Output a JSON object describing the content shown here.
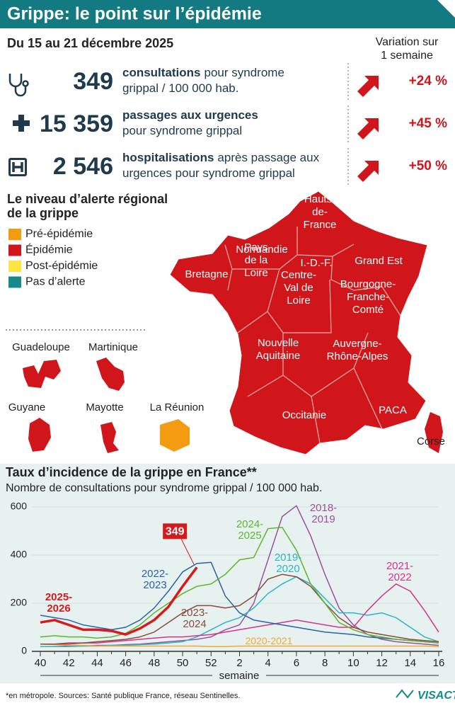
{
  "header": {
    "title": "Grippe: le point sur l’épidémie"
  },
  "period": "Du 15 au 21 décembre 2025",
  "variation_title": [
    "Variation sur",
    "1 semaine"
  ],
  "stats": [
    {
      "number": "349",
      "lines": [
        [
          "consultations",
          "pour syndrome"
        ],
        [
          "grippal / 100 000 hab."
        ]
      ],
      "variation": "+24 %"
    },
    {
      "number": "15 359",
      "lines": [
        [
          "passages aux urgences"
        ],
        [
          "pour syndrome grippal"
        ]
      ],
      "variation": "+45 %"
    },
    {
      "number": "2 546",
      "lines": [
        [
          "hospitalisations",
          "après passage aux"
        ],
        [
          "urgences pour syndrome grippal"
        ]
      ],
      "variation": "+50 %"
    }
  ],
  "legend": {
    "title": [
      "Le niveau d’alerte régional",
      "de la grippe"
    ],
    "items": [
      {
        "label": "Pré-épidémie",
        "color": "#f39c12"
      },
      {
        "label": "Épidémie",
        "color": "#d0161b"
      },
      {
        "label": "Post-épidémie",
        "color": "#fde541"
      },
      {
        "label": "Pas d’alerte",
        "color": "#16898a"
      }
    ]
  },
  "map": {
    "color": "#d0161b",
    "regions": [
      [
        "Hauts-",
        "de-",
        "France"
      ],
      [
        "Normandie"
      ],
      [
        "I.-D.-F."
      ],
      [
        "Grand Est"
      ],
      [
        "Bretagne"
      ],
      [
        "Pays",
        "de la",
        "Loire"
      ],
      [
        "Centre-",
        "Val de",
        "Loire"
      ],
      [
        "Bourgogne-",
        "Franche-",
        "Comté"
      ],
      [
        "Nouvelle",
        "Aquitaine"
      ],
      [
        "Auvergne-",
        "Rhône-Alpes"
      ],
      [
        "Occitanie"
      ],
      [
        "PACA"
      ],
      [
        "Corse"
      ]
    ],
    "overseas": [
      {
        "label": "Guadeloupe",
        "color": "#d0161b"
      },
      {
        "label": "Martinique",
        "color": "#d0161b"
      },
      {
        "label": "Guyane",
        "color": "#d0161b"
      },
      {
        "label": "Mayotte",
        "color": "#d0161b"
      },
      {
        "label": "La Réunion",
        "color": "#f39c12"
      }
    ]
  },
  "chart_data": {
    "type": "line",
    "title": "Taux d’incidence de la grippe en France**",
    "subtitle": "Nombre de consultations pour syndrome grippal / 100 000 hab.",
    "x_label": "semaine",
    "categories": [
      "40",
      null,
      "42",
      null,
      "44",
      null,
      "46",
      null,
      "48",
      null,
      "50",
      null,
      "52",
      null,
      "2",
      null,
      "4",
      null,
      "6",
      null,
      "8",
      null,
      "10",
      null,
      "12",
      null,
      "14",
      null,
      "16"
    ],
    "ylim": [
      0,
      600
    ],
    "yticks": [
      0,
      200,
      400,
      600
    ],
    "grid": true,
    "series": [
      {
        "name": "2025-2026",
        "color": "#d7191c",
        "values": [
          120,
          130,
          110,
          90,
          90,
          85,
          70,
          95,
          130,
          185,
          270,
          349,
          null,
          null,
          null,
          null,
          null,
          null,
          null,
          null,
          null,
          null,
          null,
          null,
          null,
          null,
          null,
          null,
          null
        ]
      },
      {
        "name": "2024-2025",
        "color": "#5db52e",
        "values": [
          60,
          65,
          60,
          60,
          55,
          60,
          75,
          110,
          160,
          200,
          240,
          270,
          280,
          320,
          380,
          390,
          510,
          515,
          420,
          280,
          200,
          120,
          90,
          70,
          60,
          50,
          45,
          40,
          35
        ]
      },
      {
        "name": "2023-2024",
        "color": "#8b4a3c",
        "values": [
          30,
          30,
          35,
          35,
          40,
          45,
          50,
          60,
          80,
          120,
          160,
          190,
          190,
          180,
          190,
          230,
          300,
          320,
          310,
          270,
          200,
          140,
          100,
          80,
          70,
          60,
          50,
          45,
          40
        ]
      },
      {
        "name": "2022-2023",
        "color": "#2a62a8",
        "values": [
          150,
          140,
          130,
          110,
          100,
          90,
          100,
          130,
          180,
          250,
          330,
          365,
          370,
          230,
          160,
          130,
          120,
          110,
          100,
          90,
          80,
          75,
          70,
          60,
          55,
          50,
          45,
          40,
          35
        ]
      },
      {
        "name": "2021-2022",
        "color": "#d6338a",
        "values": [
          30,
          30,
          30,
          35,
          35,
          40,
          45,
          50,
          55,
          60,
          60,
          65,
          70,
          80,
          90,
          100,
          110,
          120,
          130,
          120,
          110,
          100,
          100,
          170,
          230,
          280,
          250,
          170,
          80
        ]
      },
      {
        "name": "2020-2021",
        "color": "#f0a830",
        "values": [
          30,
          28,
          25,
          25,
          22,
          22,
          22,
          22,
          22,
          22,
          22,
          22,
          20,
          20,
          22,
          22,
          22,
          22,
          22,
          22,
          22,
          22,
          22,
          22,
          22,
          22,
          22,
          22,
          20
        ]
      },
      {
        "name": "2019-2020",
        "color": "#2bb4c9",
        "values": [
          20,
          20,
          20,
          22,
          22,
          25,
          25,
          28,
          30,
          35,
          40,
          60,
          90,
          120,
          140,
          180,
          240,
          280,
          310,
          280,
          220,
          160,
          160,
          150,
          160,
          140,
          100,
          60,
          40
        ]
      },
      {
        "name": "2018-2019",
        "color": "#9b4fa0",
        "values": [
          20,
          20,
          22,
          22,
          25,
          25,
          28,
          30,
          35,
          40,
          45,
          50,
          60,
          90,
          110,
          200,
          380,
          560,
          605,
          480,
          320,
          180,
          110,
          70,
          50,
          40,
          35,
          30,
          25
        ]
      }
    ]
  },
  "footer": {
    "source": "*en métropole. Sources: Santé publique France, réseau Sentinelles.",
    "logo": "VISACTU"
  }
}
